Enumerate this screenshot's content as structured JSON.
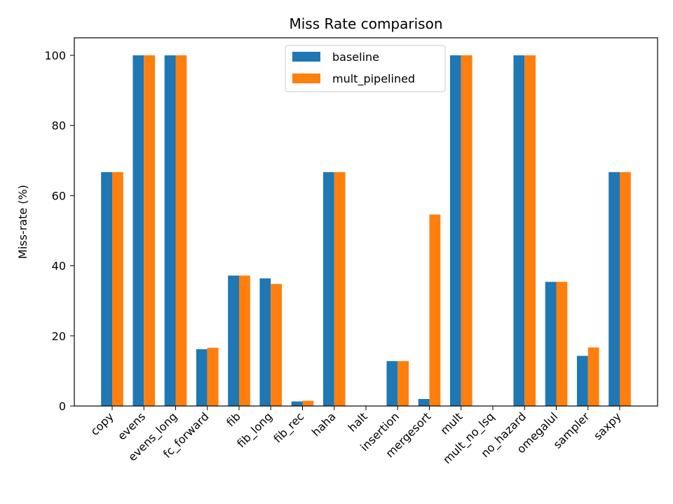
{
  "chart_data": {
    "type": "bar",
    "title": "Miss Rate comparison",
    "xlabel": "",
    "ylabel": "Miss-rate (%)",
    "ylim": [
      0,
      105
    ],
    "yticks": [
      0,
      20,
      40,
      60,
      80,
      100
    ],
    "categories": [
      "copy",
      "evens",
      "evens_long",
      "fc_forward",
      "fib",
      "fib_long",
      "fib_rec",
      "haha",
      "halt",
      "insertion",
      "mergesort",
      "mult",
      "mult_no_lsq",
      "no_hazard",
      "omegalul",
      "sampler",
      "saxpy"
    ],
    "series": [
      {
        "name": "baseline",
        "color": "#1f77b4",
        "values": [
          66.7,
          100,
          100,
          16.2,
          37.2,
          36.4,
          1.3,
          66.7,
          0,
          12.8,
          2.0,
          100,
          0,
          100,
          35.4,
          14.3,
          66.7
        ]
      },
      {
        "name": "mult_pipelined",
        "color": "#ff7f0e",
        "values": [
          66.7,
          100,
          100,
          16.6,
          37.2,
          34.8,
          1.5,
          66.7,
          0,
          12.8,
          54.6,
          100,
          0,
          100,
          35.4,
          16.7,
          66.7
        ]
      }
    ],
    "legend_position": "top-center",
    "grid": false
  }
}
